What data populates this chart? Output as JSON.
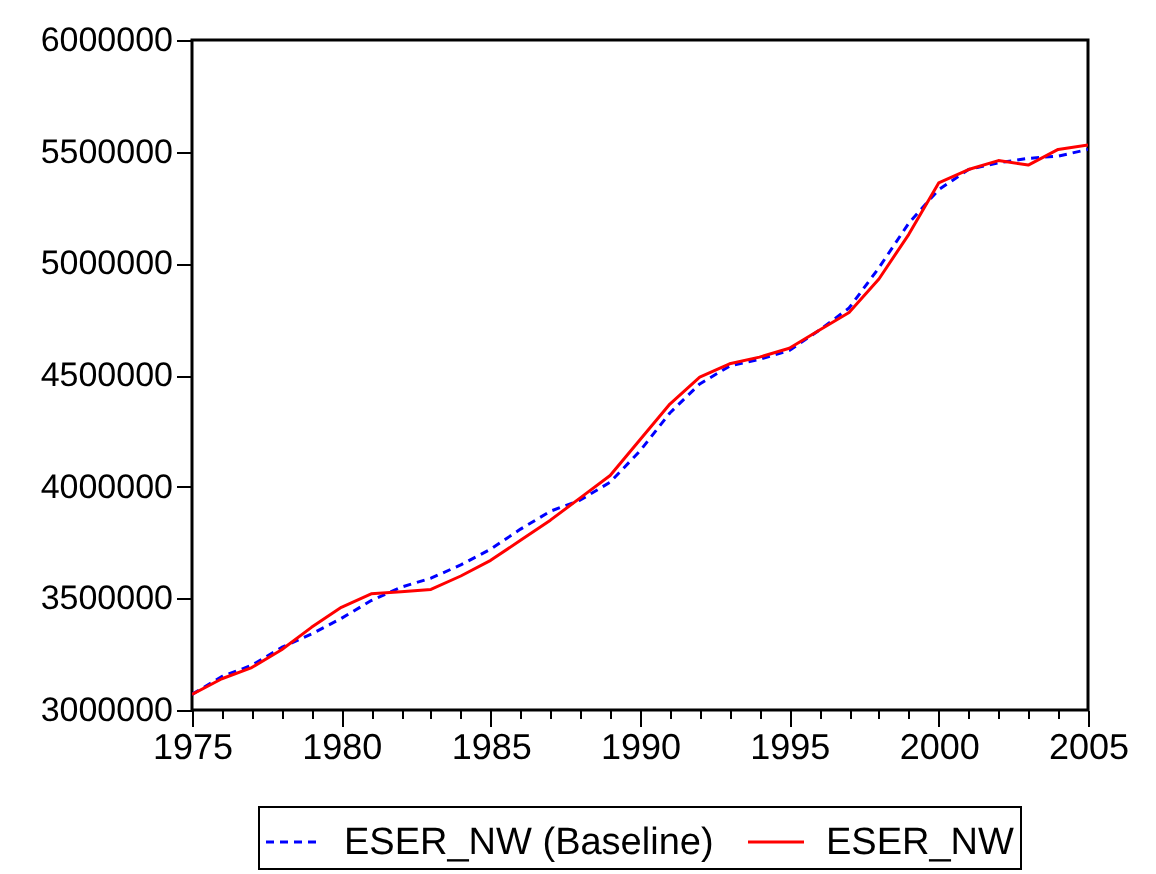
{
  "chart_data": {
    "type": "line",
    "x": [
      1975,
      1976,
      1977,
      1978,
      1979,
      1980,
      1981,
      1982,
      1983,
      1984,
      1985,
      1986,
      1987,
      1988,
      1989,
      1990,
      1991,
      1992,
      1993,
      1994,
      1995,
      1996,
      1997,
      1998,
      1999,
      2000,
      2001,
      2002,
      2003,
      2004,
      2005
    ],
    "series": [
      {
        "name": "ESER_NW (Baseline)",
        "color": "#0000ff",
        "line_style": "dashed",
        "values": [
          3070000,
          3150000,
          3200000,
          3280000,
          3340000,
          3410000,
          3490000,
          3550000,
          3590000,
          3650000,
          3720000,
          3810000,
          3890000,
          3940000,
          4020000,
          4160000,
          4330000,
          4460000,
          4540000,
          4570000,
          4610000,
          4700000,
          4800000,
          4980000,
          5180000,
          5330000,
          5420000,
          5450000,
          5470000,
          5480000,
          5510000
        ]
      },
      {
        "name": "ESER_NW",
        "color": "#ff0000",
        "line_style": "solid",
        "values": [
          3070000,
          3140000,
          3190000,
          3270000,
          3370000,
          3460000,
          3520000,
          3530000,
          3540000,
          3600000,
          3670000,
          3760000,
          3850000,
          3950000,
          4050000,
          4210000,
          4370000,
          4490000,
          4550000,
          4580000,
          4620000,
          4700000,
          4780000,
          4930000,
          5130000,
          5360000,
          5420000,
          5460000,
          5440000,
          5510000,
          5530000
        ]
      }
    ],
    "xlim": [
      1975,
      2005
    ],
    "xticks": [
      1975,
      {
        "value": 1976,
        "label": null
      },
      {
        "value": 1977,
        "label": null
      },
      {
        "value": 1978,
        "label": null
      },
      {
        "value": 1979,
        "label": null
      },
      1980,
      {
        "value": 1981,
        "label": null
      },
      {
        "value": 1982,
        "label": null
      },
      {
        "value": 1983,
        "label": null
      },
      {
        "value": 1984,
        "label": null
      },
      1985,
      {
        "value": 1986,
        "label": null
      },
      {
        "value": 1987,
        "label": null
      },
      {
        "value": 1988,
        "label": null
      },
      {
        "value": 1989,
        "label": null
      },
      1990,
      {
        "value": 1991,
        "label": null
      },
      {
        "value": 1992,
        "label": null
      },
      {
        "value": 1993,
        "label": null
      },
      {
        "value": 1994,
        "label": null
      },
      1995,
      {
        "value": 1996,
        "label": null
      },
      {
        "value": 1997,
        "label": null
      },
      {
        "value": 1998,
        "label": null
      },
      {
        "value": 1999,
        "label": null
      },
      2000,
      {
        "value": 2001,
        "label": null
      },
      {
        "value": 2002,
        "label": null
      },
      {
        "value": 2003,
        "label": null
      },
      {
        "value": 2004,
        "label": null
      },
      2005
    ],
    "ylim": [
      3000000,
      6000000
    ],
    "yticks": [
      3000000,
      3500000,
      4000000,
      4500000,
      5000000,
      5500000,
      6000000
    ],
    "grid": false,
    "legend": "bottom"
  }
}
